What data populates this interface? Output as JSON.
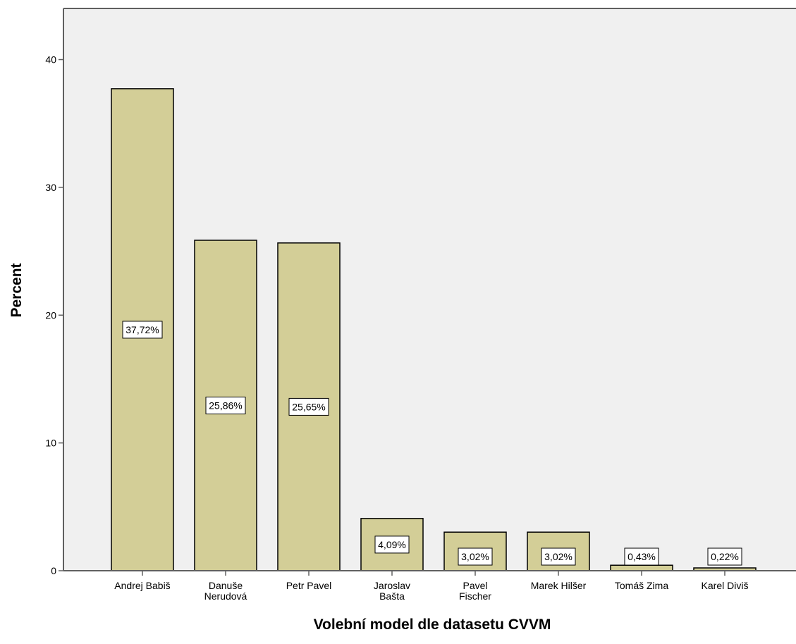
{
  "chart_data": {
    "type": "bar",
    "title": "",
    "xlabel": "Volební model dle datasetu CVVM",
    "ylabel": "Percent",
    "ylim": [
      0,
      44
    ],
    "yticks": [
      0,
      10,
      20,
      30,
      40
    ],
    "grid": false,
    "categories": [
      [
        "Andrej Babiš"
      ],
      [
        "Danuše",
        "Nerudová"
      ],
      [
        "Petr Pavel"
      ],
      [
        "Jaroslav",
        "Bašta"
      ],
      [
        "Pavel",
        "Fischer"
      ],
      [
        "Marek Hilšer"
      ],
      [
        "Tomáš Zima"
      ],
      [
        "Karel Diviš"
      ]
    ],
    "values": [
      37.72,
      25.86,
      25.65,
      4.09,
      3.02,
      3.02,
      0.43,
      0.22
    ],
    "data_labels": [
      "37,72%",
      "25,86%",
      "25,65%",
      "4,09%",
      "3,02%",
      "3,02%",
      "0,43%",
      "0,22%"
    ],
    "colors": {
      "plot_background": "#f0f0f0",
      "bar_fill": "#d3ce97",
      "bar_stroke": "#000000",
      "frame": "#606060"
    }
  }
}
